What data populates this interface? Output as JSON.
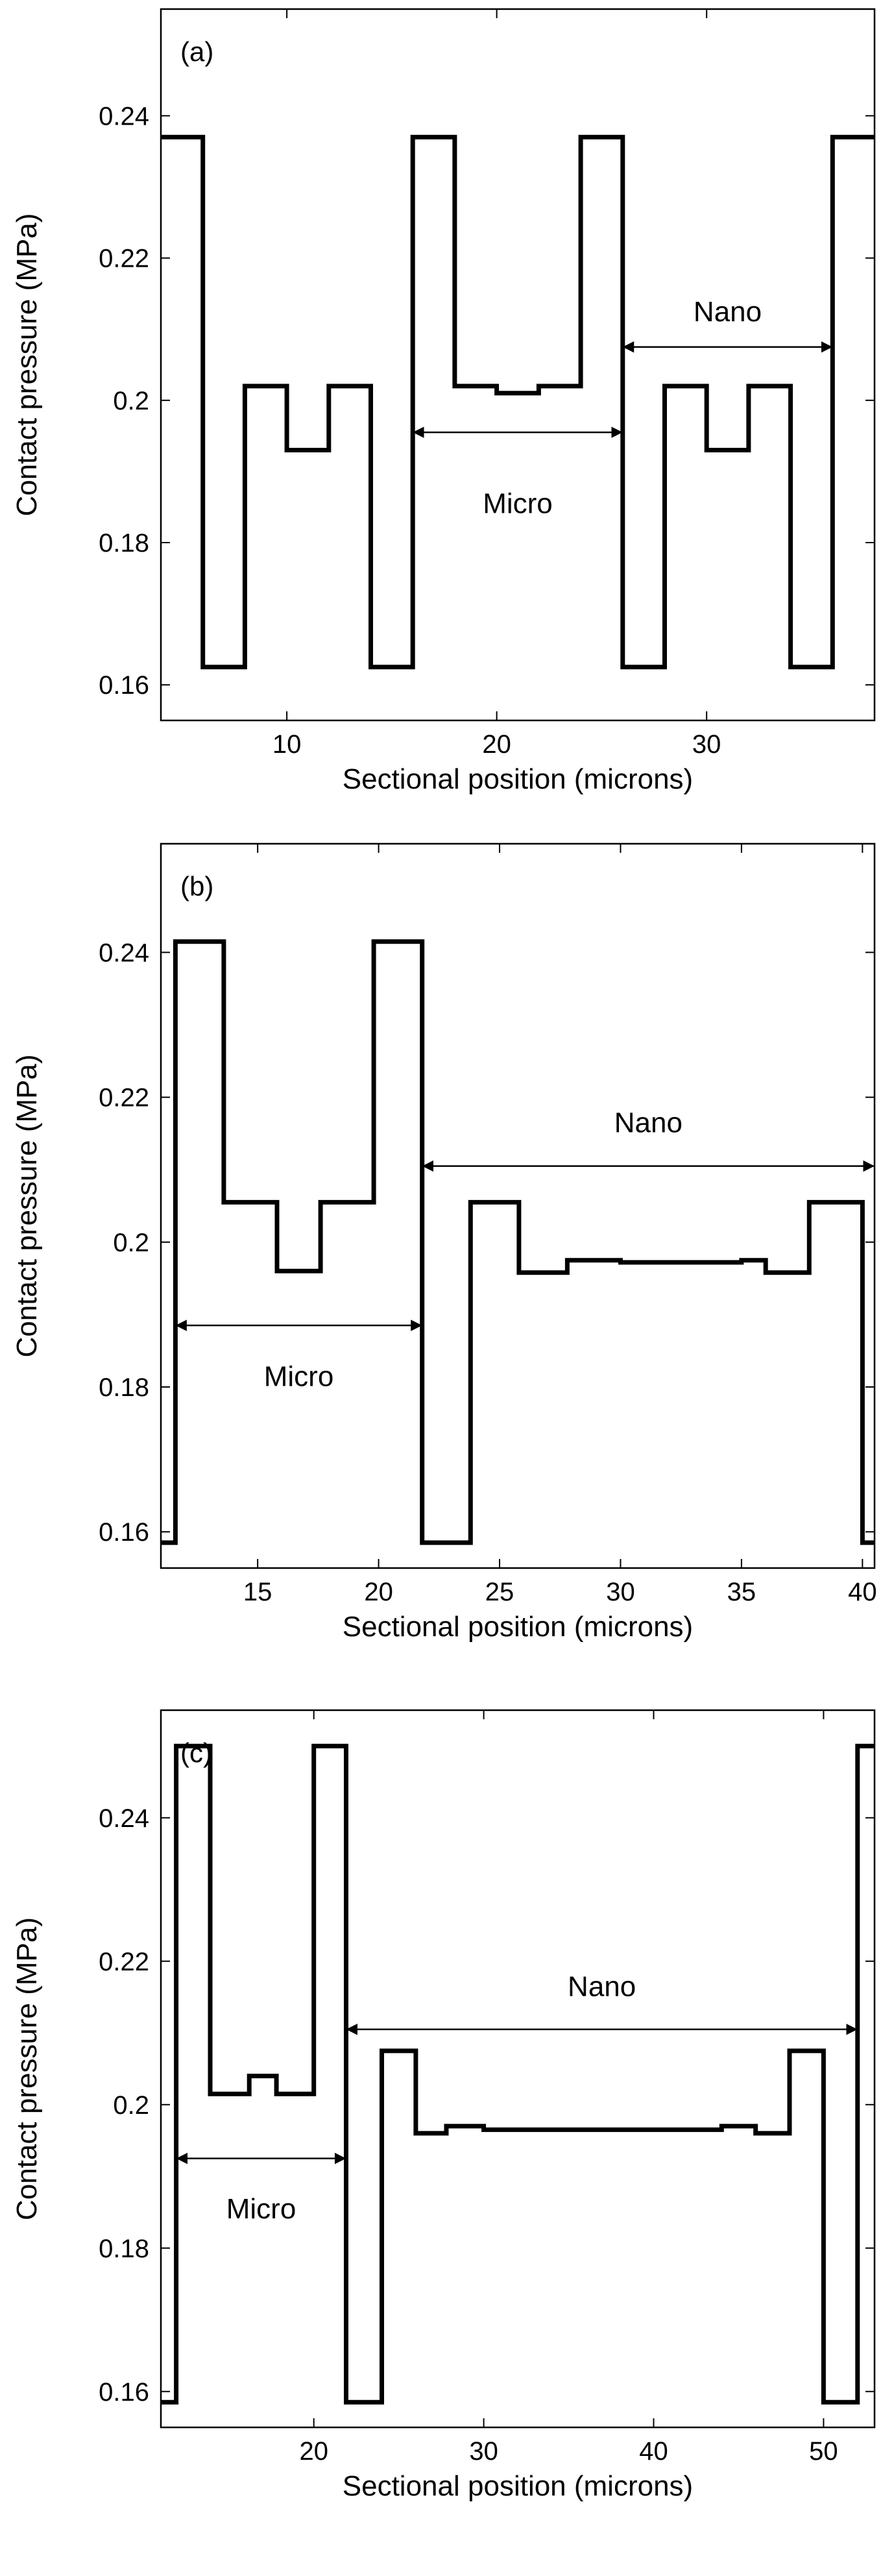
{
  "figure": {
    "description_hidden": ""
  },
  "chart_data": [
    {
      "type": "line",
      "panel_label": "(a)",
      "xlabel": "Sectional position (microns)",
      "ylabel": "Contact pressure (MPa)",
      "xlim": [
        4,
        38
      ],
      "ylim": [
        0.155,
        0.255
      ],
      "xticks": [
        10,
        20,
        30
      ],
      "xtick_labels": [
        "10",
        "20",
        "30"
      ],
      "yticks": [
        0.16,
        0.18,
        0.2,
        0.22,
        0.24
      ],
      "ytick_labels": [
        "0.16",
        "0.18",
        "0.2",
        "0.22",
        "0.24"
      ],
      "series": [
        {
          "name": "pressure",
          "x": [
            4,
            6,
            6,
            8,
            8,
            10,
            10,
            12,
            12,
            14,
            14,
            16,
            16,
            18,
            18,
            20,
            20,
            22,
            22,
            24,
            24,
            26,
            26,
            28,
            28,
            30,
            30,
            32,
            32,
            34,
            34,
            36,
            36,
            38
          ],
          "y": [
            0.237,
            0.237,
            0.1625,
            0.1625,
            0.202,
            0.202,
            0.193,
            0.193,
            0.202,
            0.202,
            0.1625,
            0.1625,
            0.237,
            0.237,
            0.202,
            0.202,
            0.201,
            0.201,
            0.202,
            0.202,
            0.237,
            0.237,
            0.1625,
            0.1625,
            0.202,
            0.202,
            0.193,
            0.193,
            0.202,
            0.202,
            0.1625,
            0.1625,
            0.237,
            0.237
          ]
        }
      ],
      "annotations": [
        {
          "text": "Micro",
          "from": 16,
          "to": 26,
          "y": 0.1955,
          "text_y": 0.1855
        },
        {
          "text": "Nano",
          "from": 26,
          "to": 36,
          "y": 0.2075,
          "text_y": 0.2125
        }
      ]
    },
    {
      "type": "line",
      "panel_label": "(b)",
      "xlabel": "Sectional position (microns)",
      "ylabel": "Contact pressure (MPa)",
      "xlim": [
        11,
        40.5
      ],
      "ylim": [
        0.155,
        0.255
      ],
      "xticks": [
        15,
        20,
        25,
        30,
        35,
        40
      ],
      "xtick_labels": [
        "15",
        "20",
        "25",
        "30",
        "35",
        "40"
      ],
      "yticks": [
        0.16,
        0.18,
        0.2,
        0.22,
        0.24
      ],
      "ytick_labels": [
        "0.16",
        "0.18",
        "0.2",
        "0.22",
        "0.24"
      ],
      "series": [
        {
          "name": "pressure",
          "x": [
            11,
            11.6,
            11.6,
            13.6,
            13.6,
            15.8,
            15.8,
            17.6,
            17.6,
            19.8,
            19.8,
            21.8,
            21.8,
            23.8,
            23.8,
            25.8,
            25.8,
            27.8,
            27.8,
            30,
            30,
            35,
            35,
            36,
            36,
            37.8,
            37.8,
            40,
            40,
            40.5
          ],
          "y": [
            0.1585,
            0.1585,
            0.2415,
            0.2415,
            0.2055,
            0.2055,
            0.196,
            0.196,
            0.2055,
            0.2055,
            0.2415,
            0.2415,
            0.1585,
            0.1585,
            0.2055,
            0.2055,
            0.1958,
            0.1958,
            0.1975,
            0.1975,
            0.1972,
            0.1972,
            0.1975,
            0.1975,
            0.1958,
            0.1958,
            0.2055,
            0.2055,
            0.1585,
            0.1585
          ]
        }
      ],
      "annotations": [
        {
          "text": "Micro",
          "from": 11.6,
          "to": 21.8,
          "y": 0.1885,
          "text_y": 0.1815
        },
        {
          "text": "Nano",
          "from": 21.8,
          "to": 40.5,
          "y": 0.2105,
          "text_y": 0.2165
        }
      ]
    },
    {
      "type": "line",
      "panel_label": "(c)",
      "xlabel": "Sectional position (microns)",
      "ylabel": "Contact pressure (MPa)",
      "xlim": [
        11,
        53
      ],
      "ylim": [
        0.155,
        0.255
      ],
      "xticks": [
        20,
        30,
        40,
        50
      ],
      "xtick_labels": [
        "20",
        "30",
        "40",
        "50"
      ],
      "yticks": [
        0.16,
        0.18,
        0.2,
        0.22,
        0.24
      ],
      "ytick_labels": [
        "0.16",
        "0.18",
        "0.2",
        "0.22",
        "0.24"
      ],
      "series": [
        {
          "name": "pressure",
          "x": [
            11,
            11.9,
            11.9,
            13.9,
            13.9,
            16.2,
            16.2,
            17.8,
            17.8,
            20,
            20,
            21.9,
            21.9,
            24,
            24,
            26,
            26,
            27.8,
            27.8,
            30,
            30,
            44,
            44,
            46,
            46,
            48,
            48,
            50,
            50,
            52,
            52,
            53
          ],
          "y": [
            0.1585,
            0.1585,
            0.25,
            0.25,
            0.2015,
            0.2015,
            0.204,
            0.204,
            0.2015,
            0.2015,
            0.25,
            0.25,
            0.1585,
            0.1585,
            0.2075,
            0.2075,
            0.196,
            0.196,
            0.197,
            0.197,
            0.1965,
            0.1965,
            0.197,
            0.197,
            0.196,
            0.196,
            0.2075,
            0.2075,
            0.1585,
            0.1585,
            0.25,
            0.25
          ]
        }
      ],
      "annotations": [
        {
          "text": "Micro",
          "from": 11.9,
          "to": 21.9,
          "y": 0.1925,
          "text_y": 0.1855
        },
        {
          "text": "Nano",
          "from": 21.9,
          "to": 52,
          "y": 0.2105,
          "text_y": 0.2165
        }
      ]
    }
  ]
}
